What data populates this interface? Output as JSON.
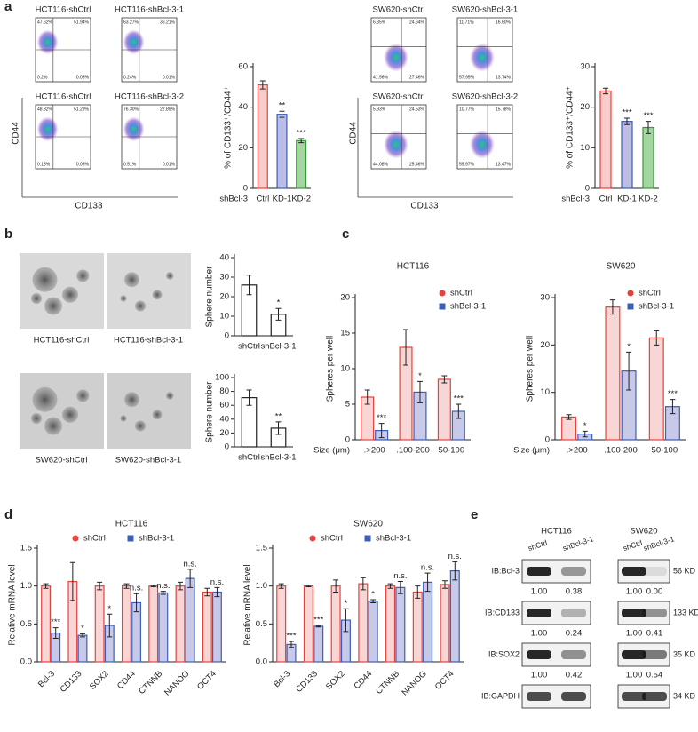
{
  "panel_labels": [
    "a",
    "b",
    "c",
    "d",
    "e"
  ],
  "flow": [
    {
      "xlabel": "CD133",
      "ylabel": "CD44",
      "plots": [
        {
          "title": "HCT116-shCtrl",
          "quadrants": [
            "47.62%",
            "51.94%",
            "0.2%",
            "0.05%"
          ]
        },
        {
          "title": "HCT116-shBcl-3-1",
          "quadrants": [
            "63.27%",
            "36.21%",
            "0.24%",
            "0.01%"
          ]
        },
        {
          "title": "HCT116-shCtrl",
          "quadrants": [
            "48.32%",
            "51.29%",
            "0.13%",
            "0.05%"
          ]
        },
        {
          "title": "HCT116-shBcl-3-2",
          "quadrants": [
            "76.30%",
            "22.89%",
            "0.51%",
            "0.01%"
          ]
        }
      ]
    },
    {
      "xlabel": "CD133",
      "ylabel": "CD44",
      "plots": [
        {
          "title": "SW620-shCtrl",
          "quadrants": [
            "6.35%",
            "24.64%",
            "41.56%",
            "27.46%"
          ]
        },
        {
          "title": "SW620-shBcl-3-1",
          "quadrants": [
            "11.71%",
            "16.60%",
            "57.95%",
            "13.74%"
          ]
        },
        {
          "title": "SW620-shCtrl",
          "quadrants": [
            "5.93%",
            "24.53%",
            "44.08%",
            "25.46%"
          ]
        },
        {
          "title": "SW620-shBcl-3-2",
          "quadrants": [
            "10.77%",
            "15.78%",
            "59.97%",
            "13.47%"
          ]
        }
      ]
    }
  ],
  "spheres": {
    "labels": [
      "HCT116-shCtrl",
      "HCT116-shBcl-3-1",
      "SW620-shCtrl",
      "SW620-shBcl-3-1"
    ]
  },
  "chart_data": [
    {
      "type": "bar",
      "ylabel": "% of CD133⁺/CD44⁺",
      "group_label": "shBcl-3",
      "categories": [
        "Ctrl",
        "KD-1",
        "KD-2"
      ],
      "values": [
        51,
        36.5,
        23.5
      ],
      "errors": [
        2,
        1.5,
        1
      ],
      "colors": [
        "#f9cccc",
        "#bdbde6",
        "#a4d6a0"
      ],
      "edge_colors": [
        "#e8413c",
        "#3b5fb6",
        "#3a9a3a"
      ],
      "annotations": [
        null,
        "**",
        "***"
      ],
      "ylim": [
        0,
        60
      ],
      "yticks": [
        0,
        20,
        40,
        60
      ]
    },
    {
      "type": "bar",
      "ylabel": "% of CD133⁺/CD44⁺",
      "group_label": "shBcl-3",
      "categories": [
        "Ctrl",
        "KD-1",
        "KD-2"
      ],
      "values": [
        24,
        16.5,
        15
      ],
      "errors": [
        0.7,
        0.8,
        1.5
      ],
      "colors": [
        "#f9cccc",
        "#bdbde6",
        "#a4d6a0"
      ],
      "edge_colors": [
        "#e8413c",
        "#3b5fb6",
        "#3a9a3a"
      ],
      "annotations": [
        null,
        "***",
        "***"
      ],
      "ylim": [
        0,
        30
      ],
      "yticks": [
        0,
        10,
        20,
        30
      ]
    },
    {
      "type": "bar",
      "ylabel": "Sphere number",
      "categories": [
        "shCtrl",
        "shBcl-3-1"
      ],
      "values": [
        26,
        11
      ],
      "errors": [
        5,
        3
      ],
      "colors": [
        "#ffffff",
        "#ffffff"
      ],
      "edge_colors": [
        "#222222",
        "#222222"
      ],
      "annotations": [
        null,
        "*"
      ],
      "ylim": [
        0,
        40
      ],
      "yticks": [
        0,
        10,
        20,
        30,
        40
      ]
    },
    {
      "type": "bar",
      "ylabel": "Sphere number",
      "categories": [
        "shCtrl",
        "shBcl-3-1"
      ],
      "values": [
        71,
        27
      ],
      "errors": [
        11,
        9
      ],
      "colors": [
        "#ffffff",
        "#ffffff"
      ],
      "edge_colors": [
        "#222222",
        "#222222"
      ],
      "annotations": [
        null,
        "**"
      ],
      "ylim": [
        0,
        100
      ],
      "yticks": [
        0,
        20,
        40,
        60,
        80,
        100
      ]
    },
    {
      "type": "bar",
      "title": "HCT116",
      "ylabel": "Spheres per well",
      "group_label": "Size (μm)",
      "categories": [
        ".>200",
        ".100-200",
        "50-100"
      ],
      "series": [
        {
          "name": "shCtrl",
          "marker": "circle",
          "color": "#f9d6d6",
          "edge_color": "#e8413c",
          "values": [
            6,
            13,
            8.5
          ],
          "errors": [
            1,
            2.5,
            0.5
          ]
        },
        {
          "name": "shBcl-3-1",
          "marker": "square",
          "color": "#c8c8e8",
          "edge_color": "#3b5fb6",
          "values": [
            1.3,
            6.7,
            4
          ],
          "errors": [
            1,
            1.5,
            1
          ]
        }
      ],
      "annotations": [
        "***",
        "*",
        "***"
      ],
      "ylim": [
        0,
        20
      ],
      "yticks": [
        0,
        5,
        10,
        15,
        20
      ]
    },
    {
      "type": "bar",
      "title": "SW620",
      "ylabel": "Spheres per well",
      "group_label": "Size (μm)",
      "categories": [
        ".>200",
        ".100-200",
        "50-100"
      ],
      "series": [
        {
          "name": "shCtrl",
          "marker": "circle",
          "color": "#f9d6d6",
          "edge_color": "#e8413c",
          "values": [
            4.8,
            28,
            21.5
          ],
          "errors": [
            0.5,
            1.5,
            1.5
          ]
        },
        {
          "name": "shBcl-3-1",
          "marker": "square",
          "color": "#c8c8e8",
          "edge_color": "#3b5fb6",
          "values": [
            1.2,
            14.5,
            7
          ],
          "errors": [
            0.6,
            4,
            1.5
          ]
        }
      ],
      "annotations": [
        "*",
        "*",
        "***"
      ],
      "ylim": [
        0,
        30
      ],
      "yticks": [
        0,
        10,
        20,
        30
      ]
    },
    {
      "type": "bar",
      "title": "HCT116",
      "ylabel": "Relative mRNA level",
      "categories": [
        "Bcl-3",
        "CD133",
        "SOX2",
        "CD44",
        "CTNNB",
        "NANOG",
        "OCT4"
      ],
      "series": [
        {
          "name": "shCtrl",
          "marker": "circle",
          "color": "#f9d6d6",
          "edge_color": "#e8413c",
          "values": [
            1,
            1.06,
            1,
            1,
            1,
            1,
            0.92
          ],
          "errors": [
            0.03,
            0.25,
            0.05,
            0.03,
            0.01,
            0.05,
            0.05
          ]
        },
        {
          "name": "shBcl-3-1",
          "marker": "square",
          "color": "#c8c8e8",
          "edge_color": "#3b5fb6",
          "values": [
            0.38,
            0.35,
            0.48,
            0.78,
            0.91,
            1.1,
            0.92
          ],
          "errors": [
            0.07,
            0.02,
            0.15,
            0.12,
            0.02,
            0.12,
            0.06
          ]
        }
      ],
      "annotations": [
        "***",
        "*",
        "*",
        "n.s.",
        "n.s.",
        "n.s.",
        "n.s."
      ],
      "ylim": [
        0,
        1.5
      ],
      "yticks": [
        {
          "value": 0,
          "label": "0.0"
        },
        0.5,
        {
          "value": 1,
          "label": "1.0"
        },
        1.5
      ]
    },
    {
      "type": "bar",
      "title": "SW620",
      "ylabel": "Relative mRNA level",
      "categories": [
        "Bcl-3",
        "CD133",
        "SOX2",
        "CD44",
        "CTNNB",
        "NANOG",
        "OCT4"
      ],
      "series": [
        {
          "name": "shCtrl",
          "marker": "circle",
          "color": "#f9d6d6",
          "edge_color": "#e8413c",
          "values": [
            1,
            1,
            1,
            1.03,
            1,
            0.92,
            1.02
          ],
          "errors": [
            0.03,
            0.01,
            0.08,
            0.08,
            0.03,
            0.08,
            0.05
          ]
        },
        {
          "name": "shBcl-3-1",
          "marker": "square",
          "color": "#c8c8e8",
          "edge_color": "#3b5fb6",
          "values": [
            0.23,
            0.47,
            0.55,
            0.8,
            0.98,
            1.05,
            1.2
          ],
          "errors": [
            0.04,
            0.01,
            0.15,
            0.02,
            0.08,
            0.12,
            0.12
          ]
        }
      ],
      "annotations": [
        "***",
        "***",
        "*",
        "*",
        "n.s.",
        "n.s.",
        "n.s."
      ],
      "ylim": [
        0,
        1.5
      ],
      "yticks": [
        {
          "value": 0,
          "label": "0.0"
        },
        0.5,
        {
          "value": 1,
          "label": "1.0"
        },
        1.5
      ]
    }
  ],
  "blot": {
    "cell_lines": [
      "HCT116",
      "SW620"
    ],
    "lanes": [
      "shCtrl",
      "shBcl-3-1",
      "shCtrl",
      "shBcl-3-1"
    ],
    "rows": [
      {
        "label": "IB:Bcl-3",
        "size": "56 KD",
        "values": [
          "1.00",
          "0.38",
          "1.00",
          "0.00"
        ]
      },
      {
        "label": "IB:CD133",
        "size": "133 KD",
        "values": [
          "1.00",
          "0.24",
          "1.00",
          "0.41"
        ]
      },
      {
        "label": "IB:SOX2",
        "size": "35 KD",
        "values": [
          "1.00",
          "0.42",
          "1.00",
          "0.54"
        ]
      },
      {
        "label": "IB:GAPDH",
        "size": "34 KD"
      }
    ]
  }
}
